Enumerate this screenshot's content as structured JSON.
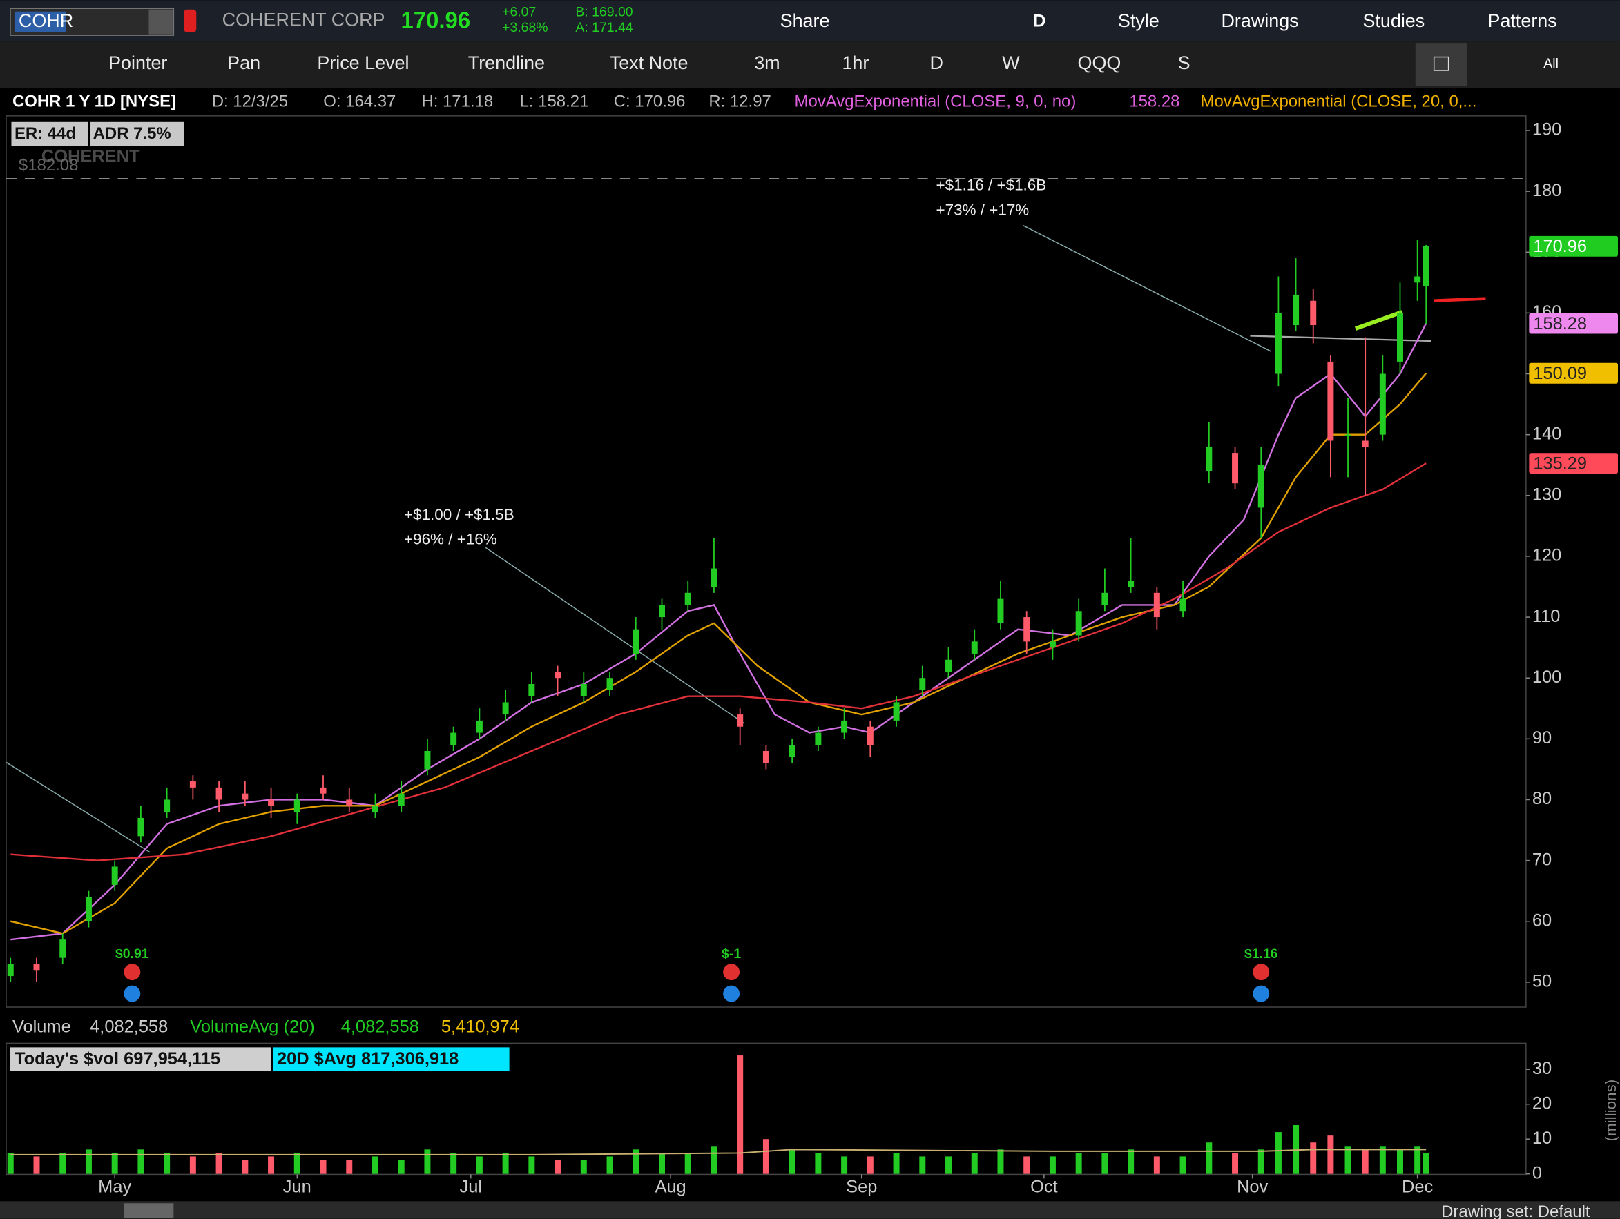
{
  "toolbar": {
    "symbol": "COHR",
    "company": "COHERENT CORP",
    "last": "170.96",
    "change": "+6.07",
    "change_pct": "+3.68%",
    "bid": "B: 169.00",
    "ask": "A: 171.44",
    "period": "D",
    "buttons": [
      "Share",
      "Style",
      "Drawings",
      "Studies",
      "Patterns"
    ]
  },
  "drawing_tools": [
    "Pointer",
    "Pan",
    "Price Level",
    "Trendline",
    "Text Note",
    "3m",
    "1hr",
    "D",
    "W",
    "QQQ",
    "S"
  ],
  "layout_button": "All",
  "chart_header": {
    "title": "COHR 1 Y 1D [NYSE]",
    "fields": [
      "D: 12/3/25",
      "O: 164.37",
      "H: 171.18",
      "L: 158.21",
      "C: 170.96",
      "R: 12.97"
    ],
    "study_9": "MovAvgExponential (CLOSE, 9, 0, no)",
    "study_9_value": "158.28",
    "study_20": "MovAvgExponential (CLOSE, 20, 0,..."
  },
  "badges": [
    "ER: 44d",
    "ADR 7.5%"
  ],
  "watermark": "COHERENT",
  "volume_header": {
    "fields": [
      "Volume",
      "4,082,558",
      "VolumeAvg (20)",
      "4,082,558",
      "5,410,974"
    ],
    "today": "Today's $vol 697,954,115",
    "avg": "20D $Avg 817,306,918"
  },
  "status": "Drawing set: Default",
  "chart_data": [
    {
      "type": "candlestick",
      "up_color": "#22cc22",
      "down_color": "#ff5a6a",
      "xlim": [
        -0.5,
        174.5
      ],
      "ylim": [
        45.9,
        192.4
      ],
      "yticks": [
        50,
        60,
        70,
        80,
        90,
        100,
        110,
        120,
        130,
        140,
        150,
        160,
        170,
        180,
        190
      ],
      "x": [
        0,
        3,
        6,
        9,
        12,
        15,
        18,
        21,
        24,
        27,
        30,
        33,
        36,
        39,
        42,
        45,
        48,
        51,
        54,
        57,
        60,
        63,
        66,
        69,
        72,
        75,
        78,
        81,
        84,
        87,
        90,
        93,
        96,
        99,
        102,
        105,
        108,
        111,
        114,
        117,
        120,
        123,
        126,
        129,
        132,
        135,
        138,
        141,
        144,
        146,
        148,
        150,
        152,
        154,
        156,
        158,
        160,
        162,
        163
      ],
      "ohlc": [
        [
          51,
          54,
          50,
          53
        ],
        [
          53,
          54,
          50,
          52
        ],
        [
          54,
          58,
          53,
          57
        ],
        [
          60,
          65,
          59,
          64
        ],
        [
          66,
          70,
          65,
          69
        ],
        [
          74,
          79,
          73,
          77
        ],
        [
          78,
          82,
          77,
          80
        ],
        [
          83,
          84,
          80,
          82
        ],
        [
          82,
          83,
          78,
          80
        ],
        [
          81,
          83,
          79,
          80
        ],
        [
          80,
          82,
          77,
          79
        ],
        [
          78,
          81,
          76,
          80
        ],
        [
          82,
          84,
          80,
          81
        ],
        [
          80,
          82,
          78,
          79
        ],
        [
          78,
          81,
          77,
          79
        ],
        [
          79,
          83,
          78,
          81
        ],
        [
          85,
          90,
          84,
          88
        ],
        [
          89,
          92,
          88,
          91
        ],
        [
          91,
          95,
          90,
          93
        ],
        [
          94,
          98,
          93,
          96
        ],
        [
          97,
          101,
          96,
          99
        ],
        [
          101,
          102,
          97,
          100
        ],
        [
          97,
          101,
          96,
          99
        ],
        [
          98,
          101,
          97,
          100
        ],
        [
          104,
          110,
          103,
          108
        ],
        [
          110,
          113,
          108,
          112
        ],
        [
          112,
          116,
          111,
          114
        ],
        [
          115,
          123,
          114,
          118
        ],
        [
          94,
          95,
          89,
          92
        ],
        [
          88,
          89,
          85,
          86
        ],
        [
          87,
          90,
          86,
          89
        ],
        [
          89,
          92,
          88,
          91
        ],
        [
          91,
          95,
          90,
          93
        ],
        [
          92,
          93,
          87,
          89
        ],
        [
          93,
          97,
          92,
          96
        ],
        [
          98,
          102,
          97,
          100
        ],
        [
          101,
          105,
          100,
          103
        ],
        [
          104,
          108,
          103,
          106
        ],
        [
          109,
          116,
          108,
          113
        ],
        [
          110,
          111,
          104,
          106
        ],
        [
          105,
          108,
          103,
          106
        ],
        [
          107,
          113,
          106,
          111
        ],
        [
          112,
          118,
          111,
          114
        ],
        [
          115,
          123,
          114,
          116
        ],
        [
          114,
          115,
          108,
          110
        ],
        [
          111,
          116,
          110,
          113
        ],
        [
          134,
          142,
          132,
          138
        ],
        [
          137,
          138,
          131,
          132
        ],
        [
          128,
          138,
          123,
          135
        ],
        [
          150,
          166,
          148,
          160
        ],
        [
          158,
          169,
          157,
          163
        ],
        [
          162,
          164,
          155,
          158
        ],
        [
          152,
          153,
          133,
          139
        ],
        [
          140,
          146,
          133,
          140
        ],
        [
          139,
          156,
          130,
          138
        ],
        [
          140,
          153,
          139,
          150
        ],
        [
          152,
          165,
          150,
          160
        ],
        [
          165,
          172,
          162,
          166
        ],
        [
          164.37,
          171.18,
          158.21,
          170.96
        ]
      ],
      "lines": [
        {
          "color": "#d070e0",
          "x": [
            0,
            6,
            12,
            18,
            24,
            30,
            36,
            42,
            48,
            54,
            60,
            66,
            72,
            78,
            81,
            84,
            88,
            92,
            96,
            99,
            104,
            110,
            116,
            122,
            128,
            134,
            138,
            142,
            146,
            148,
            152,
            156,
            160,
            163
          ],
          "values": [
            57,
            58,
            66,
            76,
            79,
            80,
            80,
            79,
            85,
            90,
            96,
            99,
            104,
            111,
            112,
            104,
            94,
            91,
            92,
            91,
            96,
            102,
            108,
            107,
            112,
            112,
            120,
            126,
            140,
            146,
            150,
            143,
            150,
            158.28
          ]
        },
        {
          "color": "#e0a000",
          "x": [
            0,
            6,
            12,
            18,
            24,
            30,
            36,
            42,
            48,
            54,
            60,
            66,
            72,
            78,
            81,
            86,
            92,
            98,
            104,
            110,
            116,
            122,
            128,
            134,
            138,
            144,
            148,
            152,
            156,
            160,
            163
          ],
          "values": [
            60,
            58,
            63,
            72,
            76,
            78,
            79,
            79,
            83,
            87,
            92,
            96,
            101,
            107,
            109,
            102,
            96,
            94,
            96,
            100,
            104,
            107,
            110,
            112,
            115,
            123,
            133,
            140,
            140,
            145,
            150.09
          ]
        },
        {
          "color": "#e0303a",
          "x": [
            0,
            10,
            20,
            30,
            40,
            50,
            60,
            70,
            78,
            84,
            92,
            98,
            104,
            110,
            116,
            122,
            128,
            134,
            140,
            146,
            152,
            158,
            163
          ],
          "values": [
            71,
            70,
            71,
            74,
            78,
            82,
            88,
            94,
            97,
            97,
            96,
            95,
            97,
            100,
            103,
            106,
            109,
            113,
            118,
            124,
            128,
            131,
            135.29
          ]
        }
      ],
      "price_markers": [
        {
          "value": 170.96,
          "color": "#1fcc1f",
          "text_color": "#ffffff"
        },
        {
          "value": 158.28,
          "color": "#ee88ee",
          "text_color": "#222222"
        },
        {
          "value": 150.09,
          "color": "#f0c000",
          "text_color": "#222222"
        },
        {
          "value": 135.29,
          "color": "#ff4a5a",
          "text_color": "#222222"
        }
      ],
      "reference_line": {
        "value": 182.08,
        "label": "$182.08"
      },
      "annotations": [
        {
          "lines": [
            "+$1.16 / +$1.6B",
            "+73% / +17%"
          ]
        },
        {
          "lines": [
            "+$1.00 / +$1.5B",
            "+96% / +16%"
          ]
        }
      ],
      "earnings": [
        {
          "x": 14,
          "label": "$0.91"
        },
        {
          "x": 83,
          "label": "$-1"
        },
        {
          "x": 144,
          "label": "$1.16"
        }
      ]
    },
    {
      "type": "bar",
      "xlim": [
        -0.5,
        174.5
      ],
      "ylim": [
        0,
        37.5
      ],
      "yticks": [
        0,
        10,
        20,
        30
      ],
      "y_label": "(millions)",
      "xticks": [
        {
          "value": 12,
          "label": "May"
        },
        {
          "value": 33,
          "label": "Jun"
        },
        {
          "value": 53,
          "label": "Jul"
        },
        {
          "value": 76,
          "label": "Aug"
        },
        {
          "value": 98,
          "label": "Sep"
        },
        {
          "value": 119,
          "label": "Oct"
        },
        {
          "value": 143,
          "label": "Nov"
        },
        {
          "value": 162,
          "label": "Dec"
        }
      ],
      "values": [
        6,
        5,
        6,
        7,
        6,
        7,
        6,
        5,
        6,
        4,
        5,
        6,
        4,
        4,
        5,
        4,
        7,
        6,
        5,
        6,
        5,
        4,
        4,
        5,
        7,
        6,
        6,
        8,
        34,
        10,
        7,
        6,
        5,
        5,
        6,
        5,
        5,
        6,
        7,
        5,
        5,
        6,
        6,
        7,
        5,
        5,
        9,
        6,
        7,
        12,
        14,
        9,
        11,
        8,
        7,
        8,
        7,
        8,
        6
      ],
      "avg_color": "#c8b070",
      "avg_x": [
        0,
        30,
        60,
        84,
        90,
        120,
        144,
        150,
        163
      ],
      "avg_values": [
        5.5,
        5.5,
        5.5,
        6,
        7,
        6.5,
        6.5,
        7,
        7
      ]
    }
  ]
}
